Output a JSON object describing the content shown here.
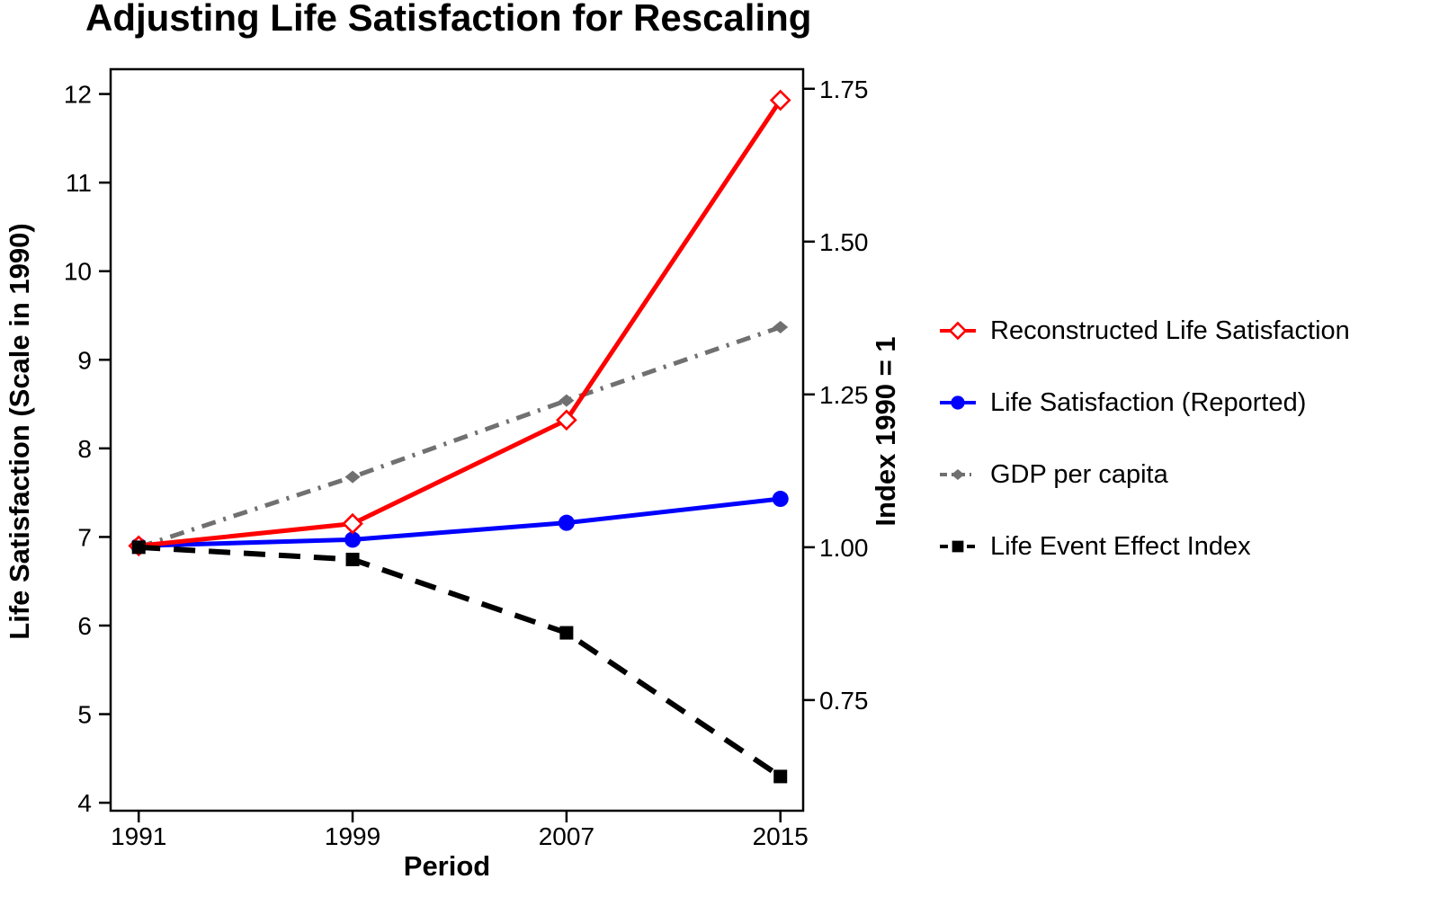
{
  "chart_data": {
    "type": "line",
    "title": "Adjusting Life Satisfaction for Rescaling",
    "xlabel": "Period",
    "ylabel_left": "Life Satisfaction (Scale in 1990)",
    "ylabel_right": "Index 1990 = 1",
    "x": [
      1991,
      1999,
      2007,
      2015
    ],
    "x_ticklabels": [
      "1991",
      "1999",
      "2007",
      "2015"
    ],
    "xlim": [
      1989.95,
      2015.85
    ],
    "ylim_left": [
      3.91,
      12.28
    ],
    "ylim_right": [
      0.569,
      1.782
    ],
    "yticks_left": [
      4,
      5,
      6,
      7,
      8,
      9,
      10,
      11,
      12
    ],
    "ytick_left_labels": [
      "4",
      "5",
      "6",
      "7",
      "8",
      "9",
      "10",
      "11",
      "12"
    ],
    "yticks_right": [
      0.75,
      1.0,
      1.25,
      1.5,
      1.75
    ],
    "ytick_right_labels": [
      "0.75",
      "1.00",
      "1.25",
      "1.50",
      "1.75"
    ],
    "grid": false,
    "legend_position": "right",
    "frame_color": "#000000",
    "series": [
      {
        "name": "Reconstructed Life Satisfaction",
        "axis": "left",
        "color": "#ff0000",
        "marker": "open-diamond",
        "line": "solid",
        "values": [
          6.9,
          7.15,
          8.32,
          11.93
        ]
      },
      {
        "name": "Life Satisfaction (Reported)",
        "axis": "left",
        "color": "#0000ff",
        "marker": "filled-circle",
        "line": "solid",
        "values": [
          6.9,
          6.97,
          7.16,
          7.43
        ]
      },
      {
        "name": "GDP per capita",
        "axis": "right",
        "color": "#707070",
        "marker": "filled-diamond",
        "line": "dashdot",
        "values": [
          1.0,
          1.115,
          1.24,
          1.36
        ]
      },
      {
        "name": "Life Event Effect Index",
        "axis": "right",
        "color": "#000000",
        "marker": "filled-square",
        "line": "dashed",
        "values": [
          1.0,
          0.98,
          0.86,
          0.625
        ]
      }
    ]
  }
}
